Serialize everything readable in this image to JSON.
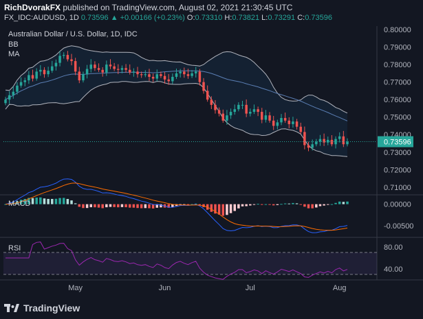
{
  "header": {
    "author": "RichDvorakFX",
    "published": "published on TradingView.com, August 02, 2021 21:30:45 UTC",
    "symbol": "FX_IDC:AUDUSD, 1D",
    "last": "0.73596",
    "change": "▲ +0.00166 (+0.23%)",
    "o_label": "O:",
    "o_value": "0.73310",
    "h_label": "H:",
    "h_value": "0.73821",
    "l_label": "L:",
    "l_value": "0.73291",
    "c_label": "C:",
    "c_value": "0.73596"
  },
  "legend": {
    "title": "Australian Dollar / U.S. Dollar, 1D, IDC",
    "bb": "BB",
    "ma": "MA"
  },
  "panels": {
    "macd_label": "MACD",
    "rsi_label": "RSI"
  },
  "footer": {
    "brand": "TradingView"
  },
  "colors": {
    "up": "#26a69a",
    "down": "#ef5350",
    "macd": "#2962ff",
    "signal": "#ff6d00",
    "rsi": "#9c27b0",
    "bg": "#131722"
  },
  "chart_data": [
    {
      "type": "candlestick",
      "title": "Australian Dollar / U.S. Dollar, 1D, IDC",
      "x_ticks": [
        "May",
        "Jun",
        "Jul",
        "Aug"
      ],
      "y_ticks": [
        "0.80000",
        "0.79000",
        "0.78000",
        "0.77000",
        "0.76000",
        "0.75000",
        "0.74000",
        "0.73000",
        "0.72000",
        "0.71000"
      ],
      "ylim": [
        0.706,
        0.802
      ],
      "last_price_label": "0.73596",
      "last_price": 0.73596,
      "closes": [
        0.76,
        0.7625,
        0.7645,
        0.768,
        0.77,
        0.771,
        0.774,
        0.772,
        0.776,
        0.777,
        0.7745,
        0.7765,
        0.779,
        0.781,
        0.785,
        0.7855,
        0.783,
        0.782,
        0.776,
        0.771,
        0.7745,
        0.7775,
        0.78,
        0.778,
        0.777,
        0.7755,
        0.78,
        0.779,
        0.7775,
        0.777,
        0.778,
        0.777,
        0.7755,
        0.776,
        0.7745,
        0.774,
        0.7745,
        0.773,
        0.772,
        0.7745,
        0.7735,
        0.7715,
        0.7705,
        0.773,
        0.775,
        0.776,
        0.7745,
        0.7735,
        0.775,
        0.776,
        0.77,
        0.765,
        0.76,
        0.757,
        0.754,
        0.752,
        0.748,
        0.751,
        0.753,
        0.7545,
        0.757,
        0.757,
        0.752,
        0.753,
        0.7545,
        0.753,
        0.7485,
        0.751,
        0.748,
        0.745,
        0.747,
        0.7495,
        0.748,
        0.746,
        0.7475,
        0.7445,
        0.7415,
        0.734,
        0.7325,
        0.7345,
        0.736,
        0.7375,
        0.7355,
        0.737,
        0.7345,
        0.7375,
        0.739,
        0.7345,
        0.736
      ],
      "macd_panel": {
        "label": "MACD",
        "y_ticks": [
          "0.00000",
          "-0.00500"
        ],
        "ylim": [
          -0.0075,
          0.002
        ]
      },
      "rsi_panel": {
        "label": "RSI",
        "y_ticks": [
          "80.00",
          "40.00"
        ],
        "ylim": [
          20,
          95
        ],
        "bands": [
          70,
          30
        ]
      }
    }
  ]
}
